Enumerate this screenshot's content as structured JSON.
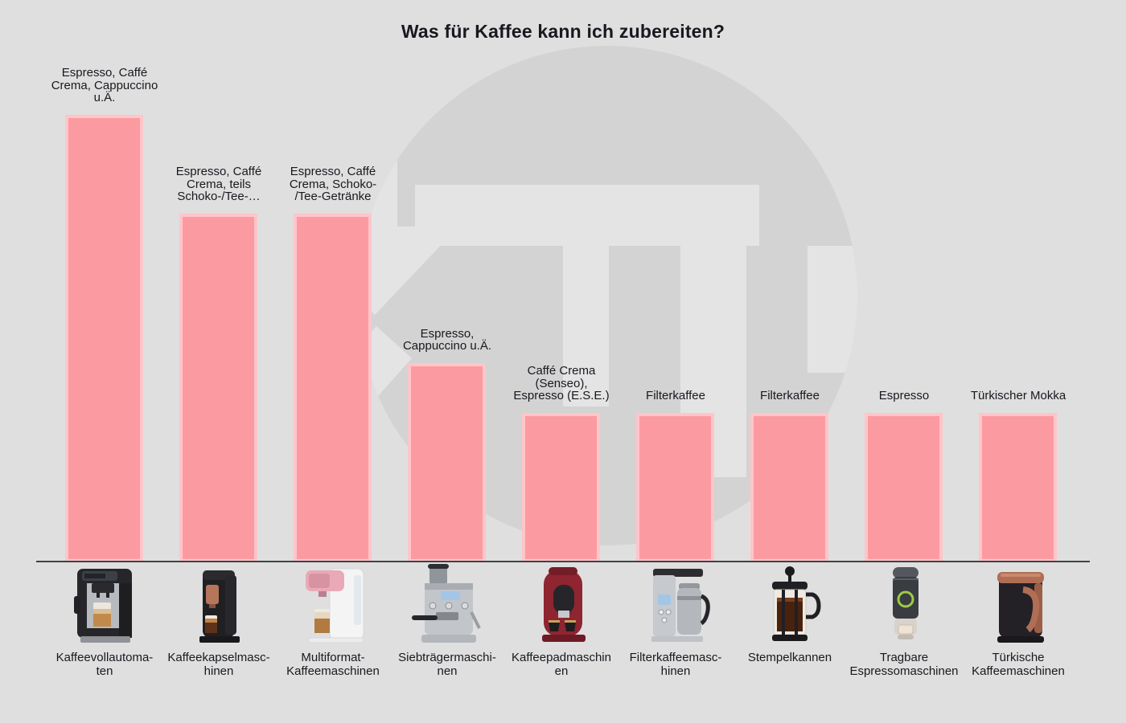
{
  "title": "Was für Kaffee kann ich zubereiten?",
  "colors": {
    "background": "#dfdfdf",
    "bar_fill": "#fb9ba1",
    "bar_border": "#ffc5c9",
    "watermark_circle": "#d3d3d3",
    "watermark_cutout": "#e4e4e4",
    "axis_line": "#3f4247",
    "text": "#17191e"
  },
  "watermark": {
    "icon": "circle-down-arrow-t-logo-watermark"
  },
  "chart_data": {
    "type": "bar",
    "title": "Was für Kaffee kann ich zubereiten?",
    "categories": [
      "Kaffeevollautomaten",
      "Kaffeekapselmaschinen",
      "Multiformat-Kaffeemaschinen",
      "Siebträgermaschinen",
      "Kaffeepadmaschinen",
      "Filterkaffeemaschinen",
      "Stempelkannen",
      "Tragbare Espressomaschinen",
      "Türkische Kaffeemaschinen"
    ],
    "category_labels_wrapped": [
      "Kaffeevollautoma-\nten",
      "Kaffeekapselmasc-\nhinen",
      "Multiformat-\nKaffeemaschinen",
      "Siebträgermaschi-\nnen",
      "Kaffeepadmaschin\nen",
      "Filterkaffeemasc-\nhinen",
      "Stempelkannen",
      "Tragbare\nEspressomaschinen",
      "Türkische\nKaffeemaschinen"
    ],
    "bar_labels": [
      "Espresso, Caffé\nCrema, Cappuccino\nu.Ä.",
      "Espresso, Caffé\nCrema, teils\nSchoko-/Tee-…",
      "Espresso, Caffé\nCrema, Schoko-\n/Tee-Getränke",
      "Espresso,\nCappuccino u.Ä.",
      "Caffé Crema\n(Senseo),\nEspresso (E.S.E.)",
      "Filterkaffee",
      "Filterkaffee",
      "Espresso",
      "Türkischer Mokka"
    ],
    "values": [
      100,
      78,
      78,
      44.5,
      33.4,
      33.4,
      33.4,
      33.4,
      33.4
    ],
    "value_axis": {
      "visible": false,
      "ylim": [
        0,
        100
      ],
      "note": "relative bar heights, no numeric axis shown"
    },
    "grid": false,
    "legend": false,
    "machine_icons": [
      "kaffeevollautomat-photo",
      "kaffeekapselmaschine-photo",
      "multiformat-kaffeemaschine-photo",
      "siebtraegermaschine-photo",
      "kaffeepadmaschine-photo",
      "filterkaffeemaschine-photo",
      "stempelkanne-photo",
      "tragbare-espressomaschine-photo",
      "tuerkische-kaffeemaschine-photo"
    ]
  }
}
